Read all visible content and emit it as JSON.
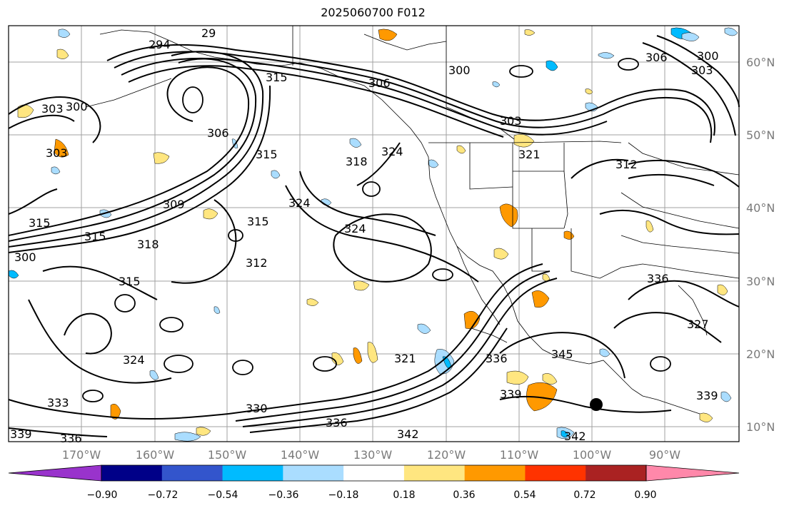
{
  "title": "2025060700 F012",
  "map": {
    "lat_labels": [
      "60°N",
      "50°N",
      "40°N",
      "30°N",
      "20°N",
      "10°N"
    ],
    "lon_labels": [
      "170°W",
      "160°W",
      "150°W",
      "140°W",
      "130°W",
      "120°W",
      "110°W",
      "100°W",
      "90°W"
    ],
    "contour_labels": [
      "294",
      "29",
      "315",
      "306",
      "300",
      "303",
      "300",
      "306",
      "303",
      "318",
      "324",
      "315",
      "321",
      "312",
      "309",
      "324",
      "315",
      "324",
      "312",
      "315",
      "318",
      "315",
      "324",
      "333",
      "330",
      "321",
      "336",
      "336",
      "339",
      "342",
      "342",
      "345",
      "327",
      "339",
      "339",
      "336",
      "306",
      "303",
      "300",
      "303",
      "300",
      "315",
      "336"
    ],
    "gridlines": true,
    "colors": {
      "contour": "#000000",
      "grid": "#a0a0a0",
      "marker": "#000000"
    }
  },
  "colorbar": {
    "tick_labels": [
      "−0.90",
      "−0.72",
      "−0.54",
      "−0.36",
      "−0.18",
      "0.18",
      "0.36",
      "0.54",
      "0.72",
      "0.90"
    ],
    "colors": [
      "#9933cc",
      "#000088",
      "#3355cc",
      "#00bbff",
      "#aaddff",
      "#ffffff",
      "#ffe680",
      "#ff9900",
      "#ff3300",
      "#aa2222",
      "#ff88aa"
    ]
  }
}
